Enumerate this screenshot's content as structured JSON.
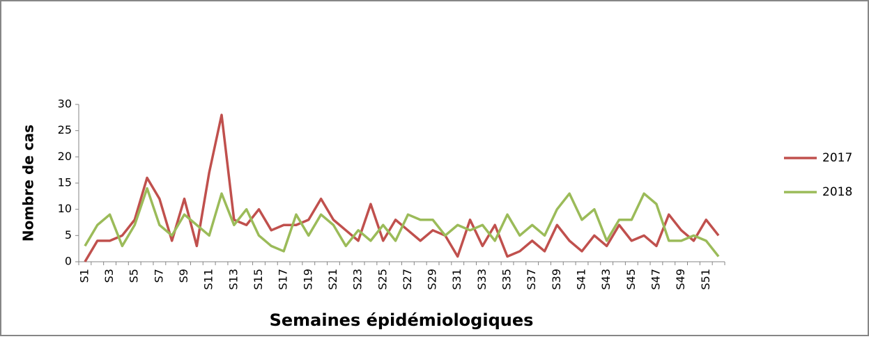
{
  "chart_data": {
    "type": "line",
    "x_label": "Semaines épidémiologiques",
    "y_label": "Nombre de cas",
    "categories": [
      "S1",
      null,
      "S3",
      null,
      "S5",
      null,
      "S7",
      null,
      "S9",
      null,
      "S11",
      null,
      "S13",
      null,
      "S15",
      null,
      "S17",
      null,
      "S19",
      null,
      "S21",
      null,
      "S23",
      null,
      "S25",
      null,
      "S27",
      null,
      "S29",
      null,
      "S31",
      null,
      "S33",
      null,
      "S35",
      null,
      "S37",
      null,
      "S39",
      null,
      "S41",
      null,
      "S43",
      null,
      "S45",
      null,
      "S47",
      null,
      "S49",
      null,
      "S51",
      null
    ],
    "series": [
      {
        "name": "2017",
        "color": "#c0504d",
        "values": [
          0,
          4,
          4,
          5,
          8,
          16,
          12,
          4,
          12,
          3,
          17,
          28,
          8,
          7,
          10,
          6,
          7,
          7,
          8,
          12,
          8,
          6,
          4,
          11,
          4,
          8,
          6,
          4,
          6,
          5,
          1,
          8,
          3,
          7,
          1,
          2,
          4,
          2,
          7,
          4,
          2,
          5,
          3,
          7,
          4,
          5,
          3,
          9,
          6,
          4,
          8,
          5
        ]
      },
      {
        "name": "2018",
        "color": "#9bbb59",
        "values": [
          3,
          7,
          9,
          3,
          7,
          14,
          7,
          5,
          9,
          7,
          5,
          13,
          7,
          10,
          5,
          3,
          2,
          9,
          5,
          9,
          7,
          3,
          6,
          4,
          7,
          4,
          9,
          8,
          8,
          5,
          7,
          6,
          7,
          4,
          9,
          5,
          7,
          5,
          10,
          13,
          8,
          10,
          4,
          8,
          8,
          13,
          11,
          4,
          4,
          5,
          4,
          1
        ]
      }
    ],
    "ylim": [
      0,
      30
    ],
    "yticks": [
      0,
      5,
      10,
      15,
      20,
      25,
      30
    ],
    "legend": "right"
  }
}
